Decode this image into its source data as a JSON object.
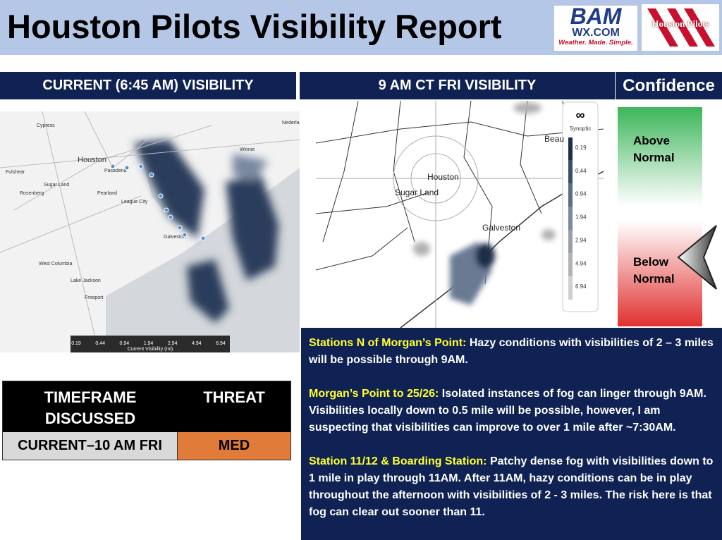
{
  "header": {
    "title": "Houston Pilots Visibility Report",
    "logo_bam": "BAM",
    "logo_wx": "WX.COM",
    "logo_tagline": "Weather. Made. Simple.",
    "logo_pilots": "Houston Pilots"
  },
  "panels": {
    "current": "CURRENT (6:45 AM) VISIBILITY",
    "forecast": "9 AM CT FRI VISIBILITY",
    "confidence": "Confidence"
  },
  "current_map": {
    "places": [
      "Cypress",
      "Houston",
      "Pasadena",
      "Fulshear",
      "Sugar Land",
      "Pearland",
      "Rosenberg",
      "League City",
      "Galveston",
      "West Columbia",
      "Lake Jackson",
      "Freeport",
      "Winnie",
      "Nederland"
    ],
    "legend_values": [
      "0.19",
      "0.44",
      "0.94",
      "1.94",
      "2.94",
      "4.94",
      "6.94"
    ],
    "legend_title": "Current Visibility (mi)"
  },
  "forecast_map": {
    "places": [
      "Houston",
      "Sugar Land",
      "Galveston",
      "Beau"
    ],
    "legend_title": "Synoptic",
    "legend_values": [
      "0.19",
      "0.44",
      "0.94",
      "1.94",
      "2.94",
      "4.94",
      "6.94"
    ]
  },
  "confidence": {
    "above": "Above Normal",
    "below": "Below Normal"
  },
  "table": {
    "header": [
      "TIMEFRAME DISCUSSED",
      "THREAT"
    ],
    "rows": [
      [
        "CURRENT–10 AM FRI",
        "MED"
      ]
    ]
  },
  "notes": [
    {
      "lead": "Stations N of Morgan’s Point:",
      "text": "Hazy conditions with visibilities of 2 – 3 miles will be possible through 9AM."
    },
    {
      "lead": "Morgan’s Point to 25/26:",
      "text": "Isolated instances of fog can linger through 9AM. Visibilities locally down to 0.5 mile will be possible, however, I am suspecting that visibilities can improve to over 1 mile after ~7:30AM."
    },
    {
      "lead": "Station 11/12 & Boarding Station:",
      "text": "Patchy dense fog with visibilities down to 1 mile in play through 11AM. After 11AM, hazy conditions can be in play throughout the afternoon with visibilities of 2 -  3 miles. The risk here is that fog can clear out sooner than 11."
    }
  ]
}
